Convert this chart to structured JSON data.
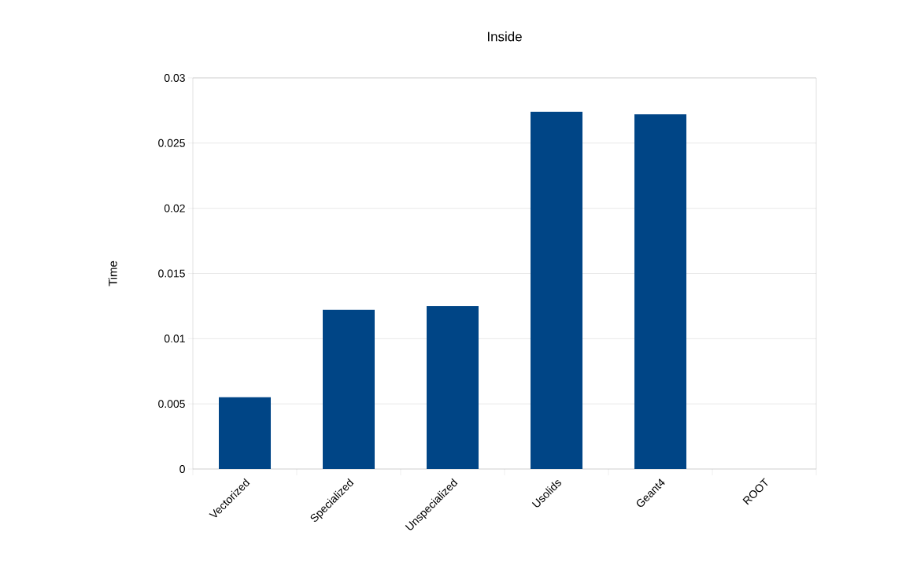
{
  "chart_data": {
    "type": "bar",
    "title": "Inside",
    "ylabel": "Time",
    "categories": [
      "Vectorized",
      "Specialized",
      "Unspecialized",
      "Usolids",
      "Geant4",
      "ROOT"
    ],
    "values": [
      0.0055,
      0.0122,
      0.0125,
      0.0274,
      0.0272,
      null
    ],
    "color": "#004586",
    "ylim": [
      0,
      0.03
    ],
    "yticks": [
      0,
      0.005,
      0.01,
      0.015,
      0.02,
      0.025,
      0.03
    ],
    "grid": "y"
  }
}
